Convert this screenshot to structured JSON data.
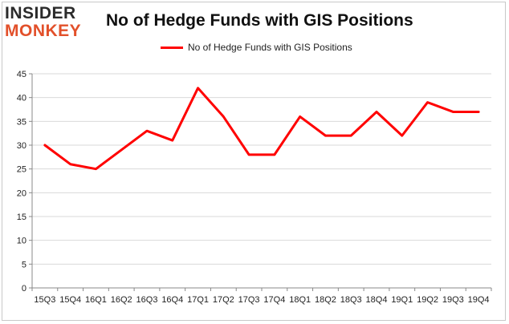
{
  "logo": {
    "top": "INSIDER",
    "bottom": "MONKEY"
  },
  "chart_data": {
    "type": "line",
    "title": "No of Hedge Funds with GIS Positions",
    "categories": [
      "15Q3",
      "15Q4",
      "16Q1",
      "16Q2",
      "16Q3",
      "16Q4",
      "17Q1",
      "17Q2",
      "17Q3",
      "17Q4",
      "18Q1",
      "18Q2",
      "18Q3",
      "18Q4",
      "19Q1",
      "19Q2",
      "19Q3",
      "19Q4"
    ],
    "series": [
      {
        "name": "No of Hedge Funds with GIS Positions",
        "color": "#ff0000",
        "values": [
          30,
          26,
          25,
          29,
          33,
          31,
          42,
          36,
          28,
          28,
          36,
          32,
          32,
          37,
          32,
          39,
          37,
          37
        ]
      }
    ],
    "ylim": [
      0,
      45
    ],
    "yticks": [
      0,
      5,
      10,
      15,
      20,
      25,
      30,
      35,
      40,
      45
    ],
    "grid": true,
    "legend": "top-center",
    "xlabel": "",
    "ylabel": ""
  }
}
